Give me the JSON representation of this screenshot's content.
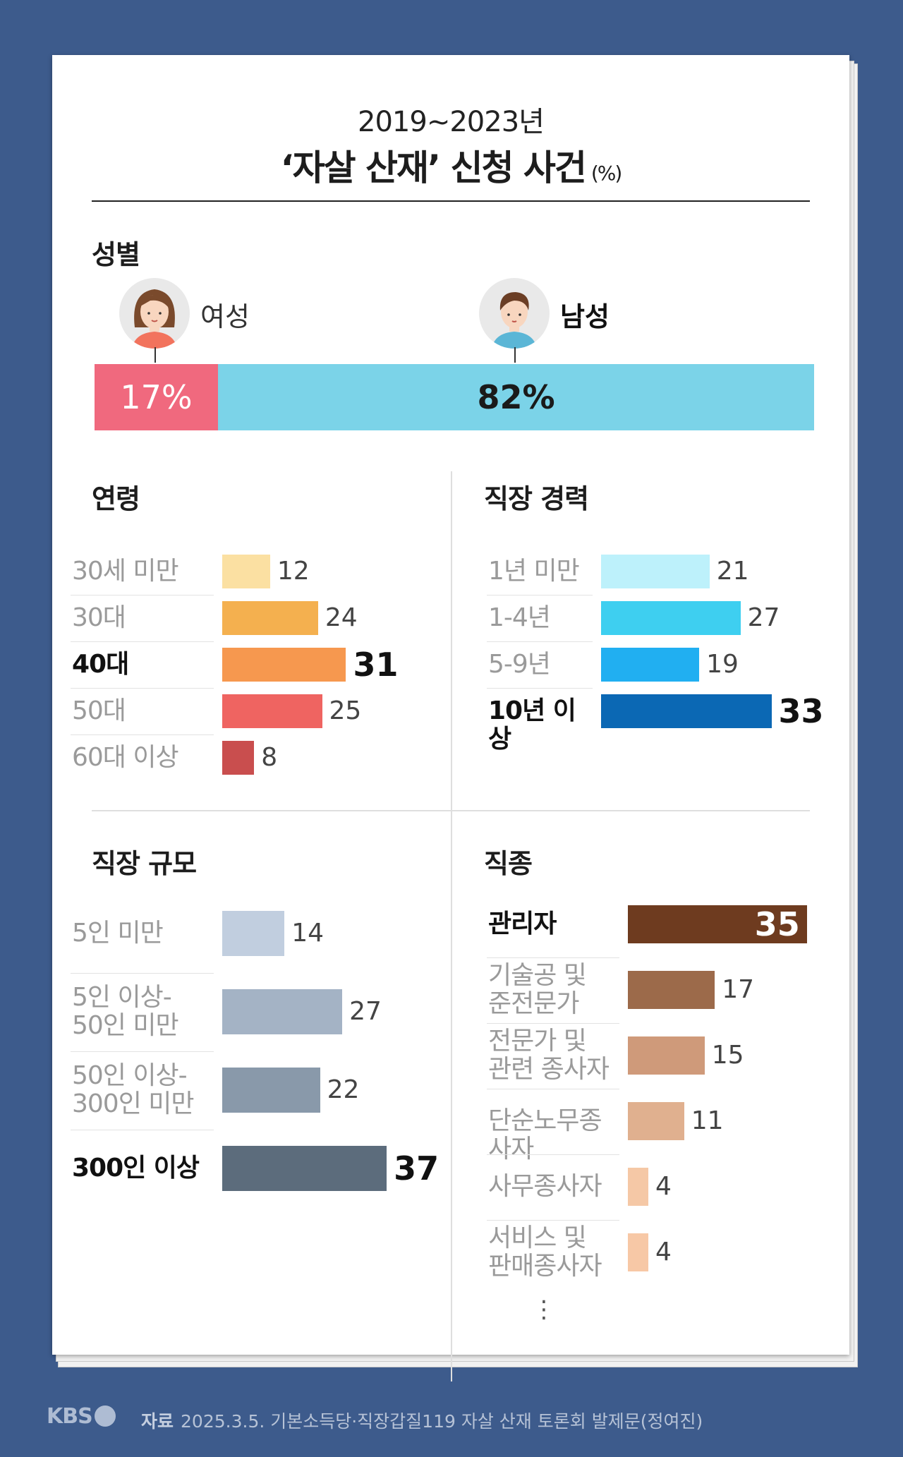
{
  "header": {
    "period": "2019~2023년",
    "title": "‘자살 산재’ 신청 사건",
    "unit": "(%)"
  },
  "sections": {
    "gender": "성별",
    "age": "연령",
    "tenure": "직장 경력",
    "size": "직장 규모",
    "occupation": "직종"
  },
  "chart_data": [
    {
      "type": "bar",
      "title": "성별",
      "categories": [
        "여성",
        "남성"
      ],
      "values": [
        17,
        82
      ],
      "value_labels": [
        "17%",
        "82%"
      ],
      "colors": [
        "#f0697e",
        "#7bd3e8"
      ]
    },
    {
      "type": "bar",
      "title": "연령",
      "categories": [
        "30세 미만",
        "30대",
        "40대",
        "50대",
        "60대 이상"
      ],
      "values": [
        12,
        24,
        31,
        25,
        8
      ],
      "highlight": "40대",
      "colors": [
        "#fbe0a2",
        "#f4b04f",
        "#f6984f",
        "#ef6461",
        "#c94e4e"
      ]
    },
    {
      "type": "bar",
      "title": "직장 경력",
      "categories": [
        "1년 미만",
        "1-4년",
        "5-9년",
        "10년 이상"
      ],
      "values": [
        21,
        27,
        19,
        33
      ],
      "highlight": "10년 이상",
      "colors": [
        "#bdf1fb",
        "#3ecff0",
        "#21aff1",
        "#0b68b4"
      ]
    },
    {
      "type": "bar",
      "title": "직장 규모",
      "categories": [
        "5인 미만",
        "5인 이상-\n50인 미만",
        "50인 이상-\n300인 미만",
        "300인 이상"
      ],
      "values": [
        14,
        27,
        22,
        37
      ],
      "highlight": "300인 이상",
      "colors": [
        "#c1cedf",
        "#a4b3c5",
        "#8999aa",
        "#5c6c7c"
      ]
    },
    {
      "type": "bar",
      "title": "직종",
      "categories": [
        "관리자",
        "기술공 및\n준전문가",
        "전문가 및\n관련 종사자",
        "단순노무종사자",
        "사무종사자",
        "서비스 및\n판매종사자"
      ],
      "values": [
        35,
        17,
        15,
        11,
        4,
        4
      ],
      "highlight": "관리자",
      "colors": [
        "#6e3b1f",
        "#9c6a4a",
        "#cf9a7a",
        "#e0b08f",
        "#f5c8a6",
        "#f7c8a6"
      ],
      "continuation": "⋮"
    }
  ],
  "footer": {
    "logo": "KBS",
    "source_label": "자료",
    "source_text": "2025.3.5. 기본소득당·직장갑질119 자살 산재 토론회 발제문(정여진)"
  },
  "icons": [
    "female-avatar-icon",
    "male-avatar-icon",
    "kbs-globe-icon"
  ]
}
